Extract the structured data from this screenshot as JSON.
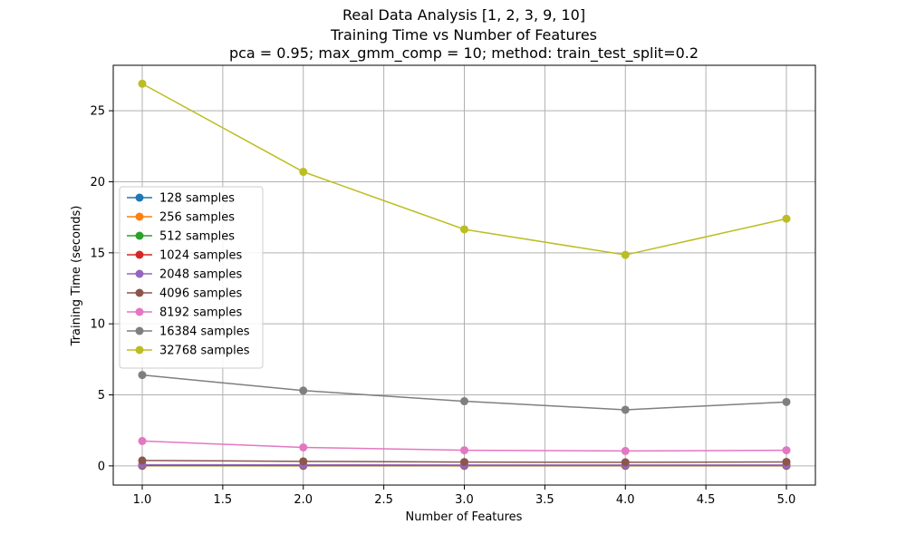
{
  "chart_data": {
    "type": "line",
    "title_lines": [
      "Real Data Analysis [1, 2, 3, 9, 10]",
      "Training Time vs Number of Features",
      "pca = 0.95; max_gmm_comp = 10; method: train_test_split=0.2"
    ],
    "xlabel": "Number of Features",
    "ylabel": "Training Time (seconds)",
    "x": [
      1.0,
      2.0,
      3.0,
      4.0,
      5.0
    ],
    "xlim": [
      0.82,
      5.18
    ],
    "ylim": [
      -1.35,
      28.2
    ],
    "xticks": [
      1.0,
      1.5,
      2.0,
      2.5,
      3.0,
      3.5,
      4.0,
      4.5,
      5.0
    ],
    "xtick_labels": [
      "1.0",
      "1.5",
      "2.0",
      "2.5",
      "3.0",
      "3.5",
      "4.0",
      "4.5",
      "5.0"
    ],
    "yticks": [
      0,
      5,
      10,
      15,
      20,
      25
    ],
    "ytick_labels": [
      "0",
      "5",
      "10",
      "15",
      "20",
      "25"
    ],
    "grid": true,
    "legend_position": "center-left",
    "series": [
      {
        "name": "128 samples",
        "color": "#1f77b4",
        "values": [
          0.01,
          0.01,
          0.01,
          0.01,
          0.01
        ]
      },
      {
        "name": "256 samples",
        "color": "#ff7f0e",
        "values": [
          0.01,
          0.01,
          0.01,
          0.01,
          0.01
        ]
      },
      {
        "name": "512 samples",
        "color": "#2ca02c",
        "values": [
          0.02,
          0.02,
          0.02,
          0.02,
          0.02
        ]
      },
      {
        "name": "1024 samples",
        "color": "#d62728",
        "values": [
          0.04,
          0.03,
          0.03,
          0.03,
          0.03
        ]
      },
      {
        "name": "2048 samples",
        "color": "#9467bd",
        "values": [
          0.08,
          0.07,
          0.06,
          0.06,
          0.06
        ]
      },
      {
        "name": "4096 samples",
        "color": "#8c564b",
        "values": [
          0.38,
          0.32,
          0.27,
          0.25,
          0.28
        ]
      },
      {
        "name": "8192 samples",
        "color": "#e377c2",
        "values": [
          1.75,
          1.3,
          1.1,
          1.05,
          1.1
        ]
      },
      {
        "name": "16384 samples",
        "color": "#7f7f7f",
        "values": [
          6.4,
          5.3,
          4.55,
          3.95,
          4.5
        ]
      },
      {
        "name": "32768 samples",
        "color": "#bcbd22",
        "values": [
          26.9,
          20.7,
          16.65,
          14.85,
          17.4
        ]
      }
    ]
  }
}
